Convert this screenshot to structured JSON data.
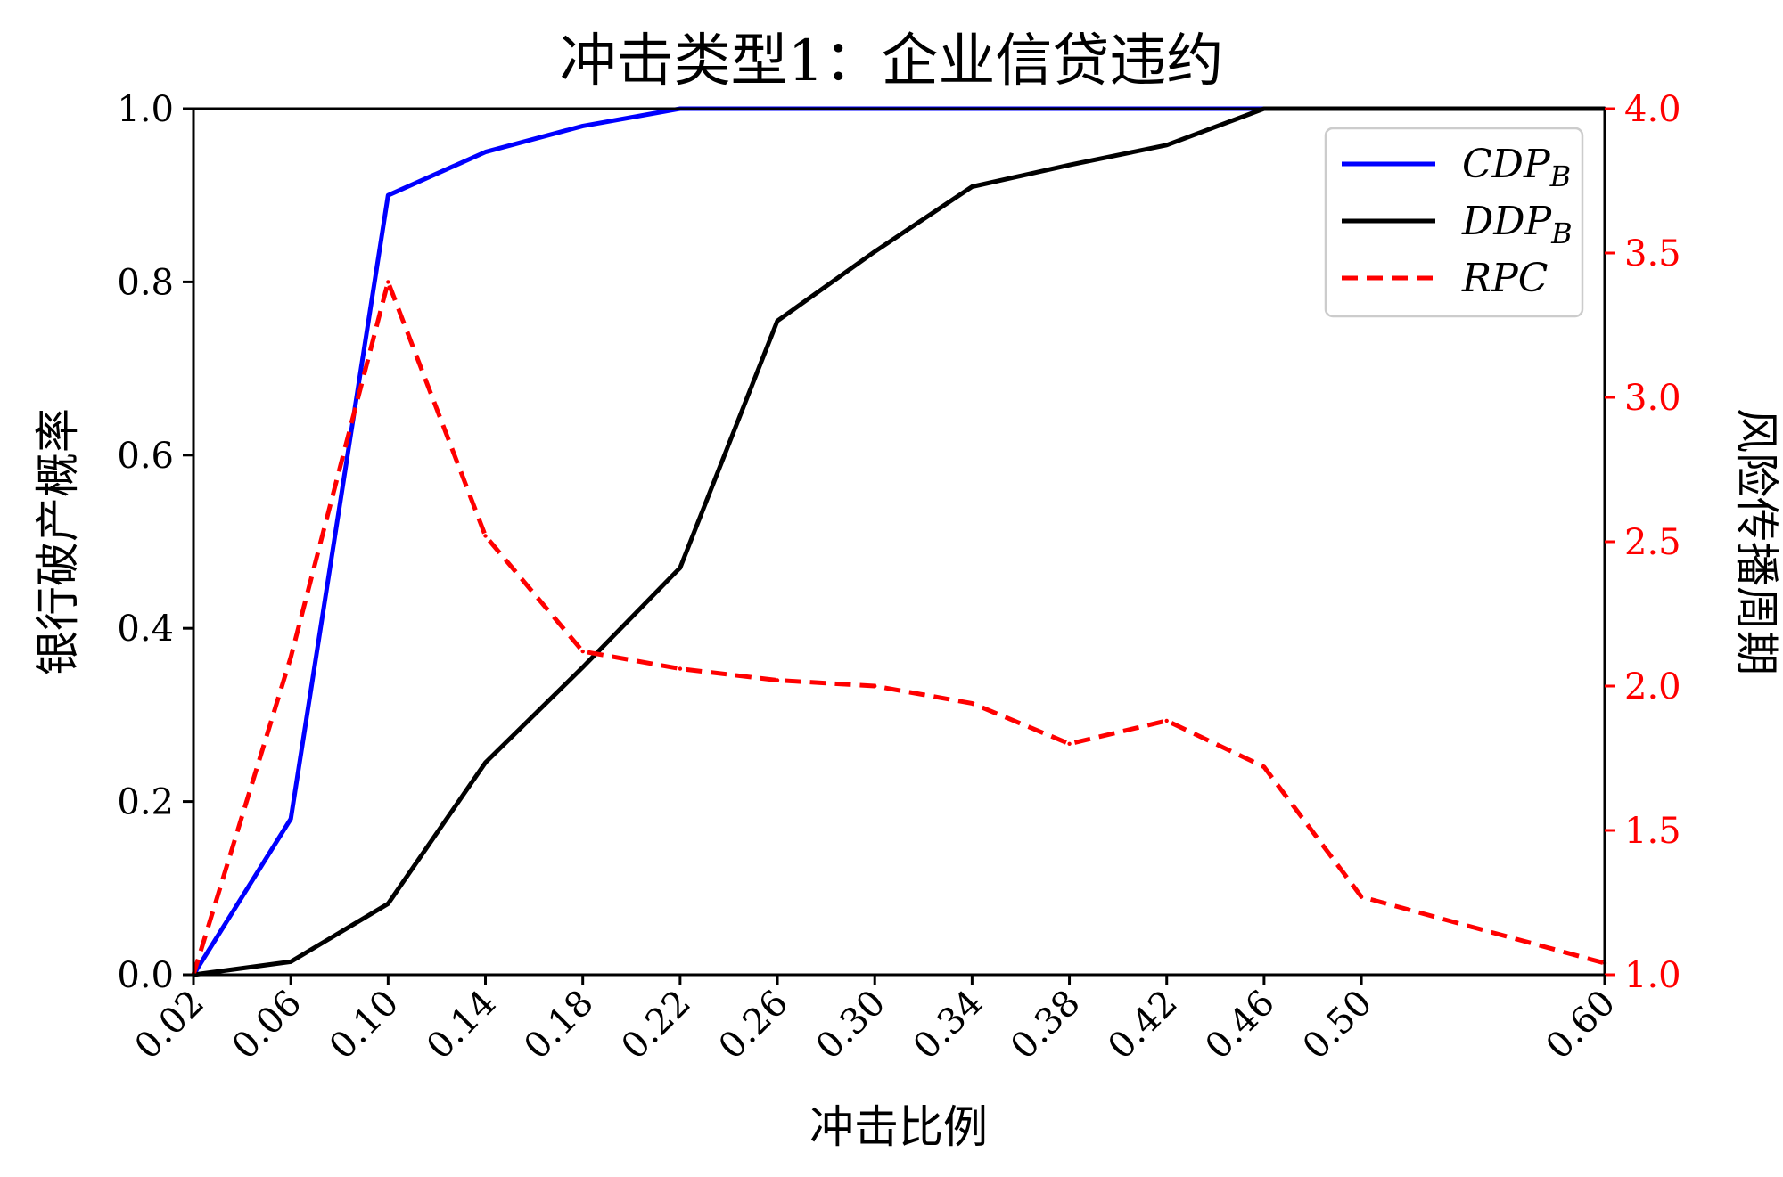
{
  "chart_data": {
    "type": "line",
    "title": "冲击类型1：企业信贷违约",
    "xlabel": "冲击比例",
    "ylabel_left": "银行破产概率",
    "ylabel_right": "风险传播周期",
    "x": [
      0.02,
      0.06,
      0.1,
      0.14,
      0.18,
      0.22,
      0.26,
      0.3,
      0.34,
      0.38,
      0.42,
      0.46,
      0.5,
      0.6
    ],
    "x_tick_labels": [
      "0.02",
      "0.06",
      "0.10",
      "0.14",
      "0.18",
      "0.22",
      "0.26",
      "0.30",
      "0.34",
      "0.38",
      "0.42",
      "0.46",
      "0.50",
      "0.60"
    ],
    "x_categorical": true,
    "ylim_left": [
      0.0,
      1.0
    ],
    "yticks_left": [
      "0.0",
      "0.2",
      "0.4",
      "0.6",
      "0.8",
      "1.0"
    ],
    "ylim_right": [
      1.0,
      4.0
    ],
    "yticks_right": [
      "1.0",
      "1.5",
      "2.0",
      "2.5",
      "3.0",
      "3.5",
      "4.0"
    ],
    "right_axis_color": "#ff0000",
    "grid": false,
    "legend_position": "top-right",
    "series": [
      {
        "name": "CDP_B",
        "legend_main": "CDP",
        "legend_sub": "B",
        "axis": "left",
        "color": "#0000ff",
        "style": "solid",
        "values": [
          0.0,
          0.18,
          0.9,
          0.95,
          0.98,
          1.0,
          1.0,
          1.0,
          1.0,
          1.0,
          1.0,
          1.0,
          1.0,
          1.0
        ]
      },
      {
        "name": "DDP_B",
        "legend_main": "DDP",
        "legend_sub": "B",
        "axis": "left",
        "color": "#000000",
        "style": "solid",
        "values": [
          0.0,
          0.015,
          0.082,
          0.245,
          0.355,
          0.47,
          0.755,
          0.835,
          0.91,
          0.935,
          0.958,
          1.0,
          1.0,
          1.0
        ]
      },
      {
        "name": "RPC",
        "legend_main": "RPC",
        "legend_sub": "",
        "axis": "right",
        "color": "#ff0000",
        "style": "dashed",
        "values": [
          1.0,
          2.1,
          3.4,
          2.52,
          2.12,
          2.06,
          2.02,
          2.0,
          1.94,
          1.8,
          1.88,
          1.72,
          1.27,
          1.04
        ]
      }
    ]
  }
}
